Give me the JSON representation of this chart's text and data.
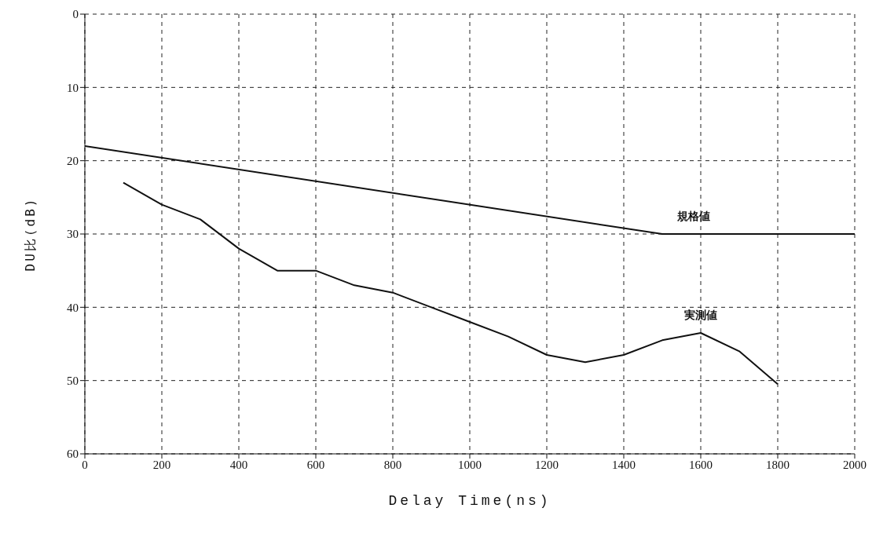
{
  "chart_data": {
    "type": "line",
    "xlabel": "Delay Time(ns)",
    "ylabel": "DU比(dB)",
    "series": [
      {
        "name": "規格値",
        "color": "#111111",
        "x": [
          0,
          1500,
          2000
        ],
        "values": [
          18,
          30,
          30
        ]
      },
      {
        "name": "実測値",
        "color": "#111111",
        "x": [
          100,
          200,
          300,
          400,
          500,
          600,
          700,
          800,
          900,
          1000,
          1100,
          1200,
          1300,
          1400,
          1500,
          1600,
          1700,
          1800
        ],
        "values": [
          23,
          26,
          28,
          32,
          35,
          35,
          37,
          38,
          40,
          42,
          44,
          46.5,
          47.5,
          46.5,
          44.5,
          43.5,
          46,
          50.5
        ]
      }
    ],
    "xlim": [
      0,
      2000
    ],
    "xticks": [
      0,
      200,
      400,
      600,
      800,
      1000,
      1200,
      1400,
      1600,
      1800,
      2000
    ],
    "ylim": [
      60,
      0
    ],
    "yticks": [
      0,
      10,
      20,
      30,
      40,
      50,
      60
    ],
    "grid": true,
    "legend": false,
    "marker": "none",
    "line_style": "solid"
  }
}
